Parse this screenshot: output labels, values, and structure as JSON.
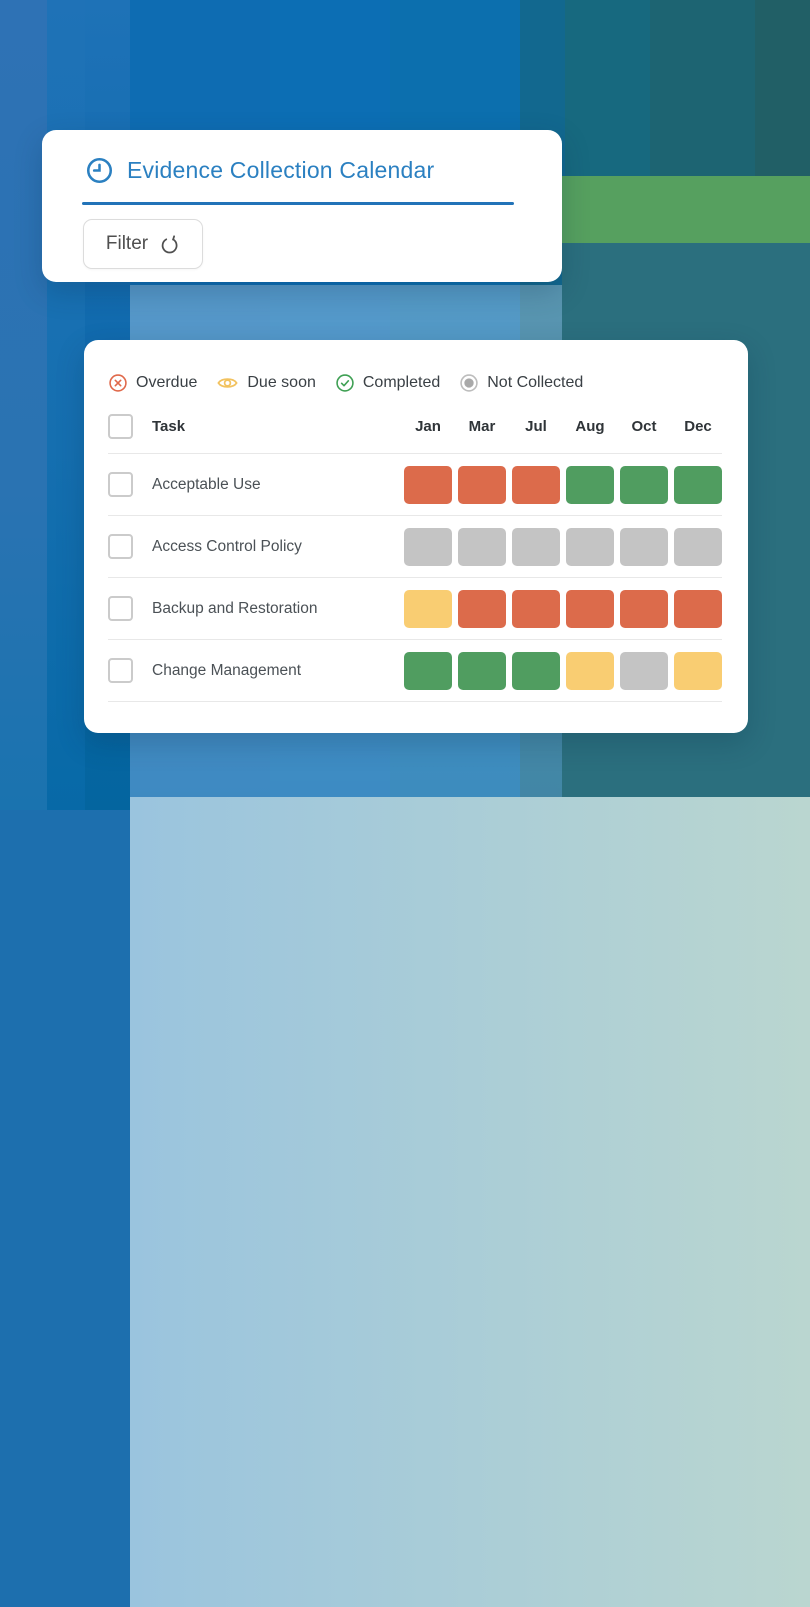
{
  "palette": {
    "accent": "#2b80c1",
    "accent_dark": "#2273b8",
    "overdue": "#dc6b4b",
    "due_soon": "#f9cd72",
    "completed": "#509d60",
    "not_collected": "#c4c4c4"
  },
  "header_card": {
    "title": "Evidence Collection Calendar",
    "title_icon": "clock-icon",
    "filter_label": "Filter"
  },
  "calendar_card": {
    "legend": [
      {
        "label": "Overdue",
        "icon": "x-circle-icon",
        "color": "#e0694b"
      },
      {
        "label": "Due soon",
        "icon": "eye-icon",
        "color": "#f2c25f"
      },
      {
        "label": "Completed",
        "icon": "check-circle-icon",
        "color": "#3fa054"
      },
      {
        "label": "Not Collected",
        "icon": "dot-circle-icon",
        "color": "#bdbdbd"
      }
    ],
    "table": {
      "task_header": "Task",
      "months": [
        "Jan",
        "Mar",
        "Jul",
        "Aug",
        "Oct",
        "Dec"
      ],
      "rows": [
        {
          "task": "Acceptable Use",
          "states": [
            "overdue",
            "overdue",
            "overdue",
            "completed",
            "completed",
            "completed"
          ]
        },
        {
          "task": "Access Control Policy",
          "states": [
            "not_collected",
            "not_collected",
            "not_collected",
            "not_collected",
            "not_collected",
            "not_collected"
          ]
        },
        {
          "task": "Backup and Restoration",
          "states": [
            "due_soon",
            "overdue",
            "overdue",
            "overdue",
            "overdue",
            "overdue"
          ]
        },
        {
          "task": "Change Management",
          "states": [
            "completed",
            "completed",
            "completed",
            "due_soon",
            "not_collected",
            "due_soon"
          ]
        }
      ]
    }
  }
}
